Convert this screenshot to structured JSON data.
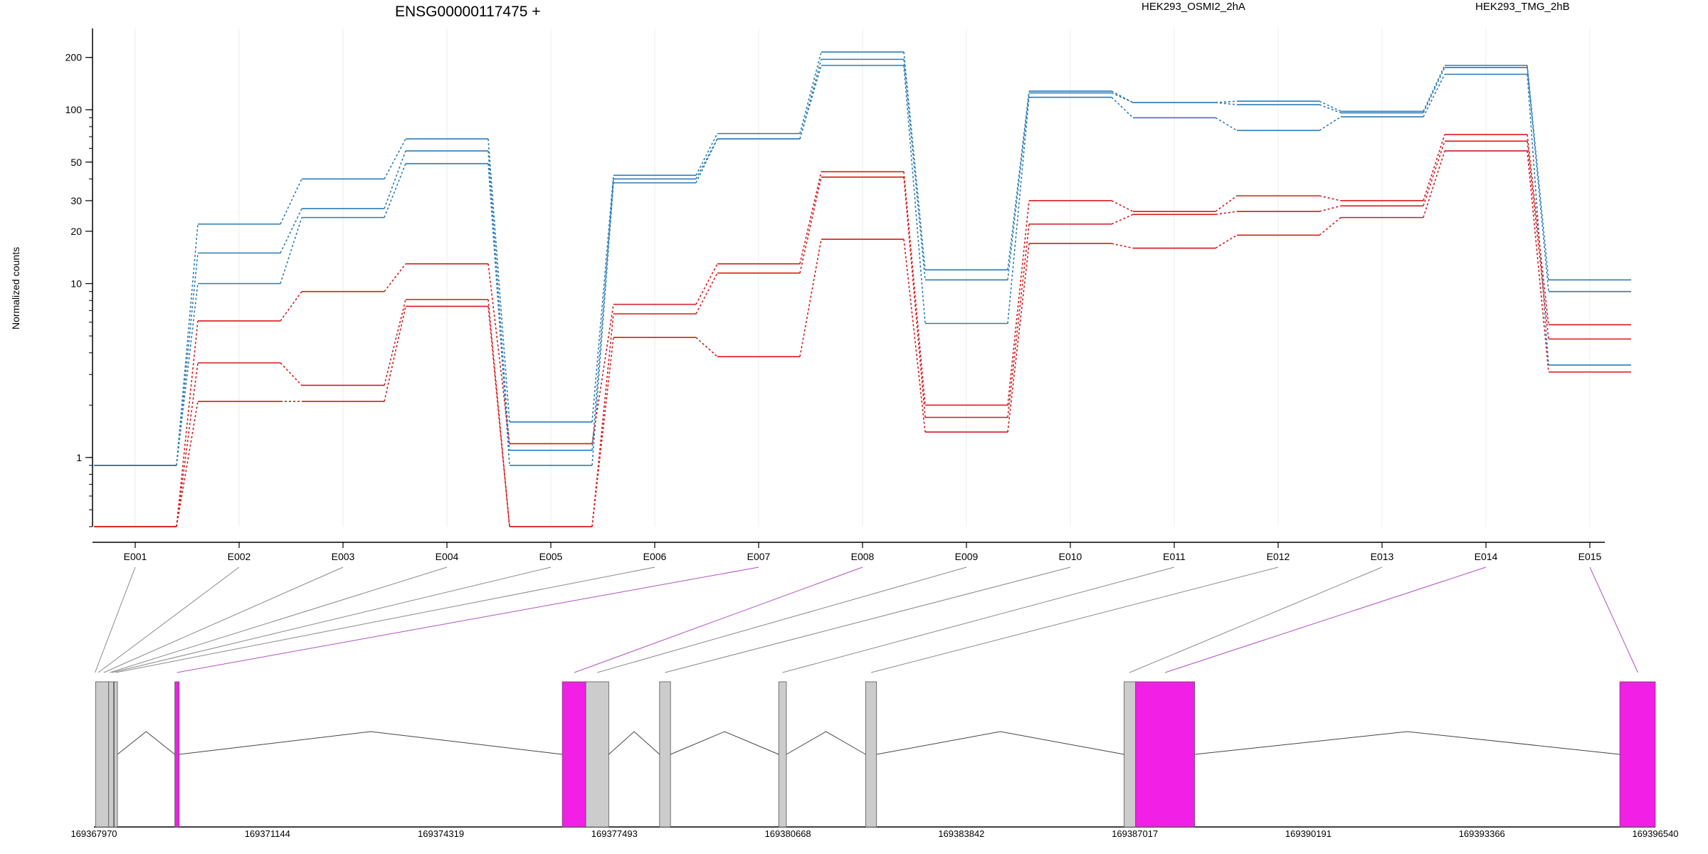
{
  "chart_data": {
    "type": "line",
    "title": "ENSG00000117475 +",
    "ylabel": "Normalized counts",
    "yscale": "log",
    "ylim": [
      0.4,
      280
    ],
    "yticks": [
      {
        "value": 1,
        "label": "1"
      },
      {
        "value": 10,
        "label": "10"
      },
      {
        "value": 20,
        "label": "20"
      },
      {
        "value": 30,
        "label": "30"
      },
      {
        "value": 50,
        "label": "50"
      },
      {
        "value": 100,
        "label": "100"
      },
      {
        "value": 200,
        "label": "200"
      }
    ],
    "categories": [
      "E001",
      "E002",
      "E003",
      "E004",
      "E005",
      "E006",
      "E007",
      "E008",
      "E009",
      "E010",
      "E011",
      "E012",
      "E013",
      "E014",
      "E015"
    ],
    "legend": [
      {
        "label": "HEK293_OSMI2_2hA",
        "color": "#d7191c"
      },
      {
        "label": "HEK293_TMG_2hB",
        "color": "#2c7bb6"
      }
    ],
    "series": [
      {
        "group": "TMG",
        "color": "#2c7bb6",
        "values": [
          0.9,
          22,
          40,
          68,
          1.6,
          42,
          73,
          215,
          12,
          128,
          110,
          112,
          98,
          180,
          10.5
        ]
      },
      {
        "group": "TMG",
        "color": "#2c7bb6",
        "values": [
          0.9,
          15,
          27,
          58,
          1.1,
          40,
          68,
          195,
          10.5,
          125,
          110,
          107,
          96,
          175,
          9
        ]
      },
      {
        "group": "TMG",
        "color": "#2c7bb6",
        "values": [
          0.9,
          10,
          24,
          49,
          0.9,
          38,
          68,
          180,
          5.9,
          118,
          90,
          76,
          91,
          160,
          3.4
        ]
      },
      {
        "group": "OSMI2",
        "color": "#d7191c",
        "values": [
          0.4,
          6.1,
          9,
          13,
          1.2,
          7.6,
          13,
          44,
          2,
          30,
          26,
          32,
          30,
          72,
          5.8
        ]
      },
      {
        "group": "OSMI2",
        "color": "#d7191c",
        "values": [
          0.4,
          3.5,
          2.6,
          8.1,
          0.4,
          6.7,
          11.5,
          41,
          1.7,
          22,
          25,
          26,
          28,
          66,
          4.8
        ]
      },
      {
        "group": "OSMI2",
        "color": "#d7191c",
        "values": [
          0.4,
          2.1,
          2.1,
          7.4,
          0.4,
          4.9,
          3.8,
          18,
          1.4,
          17,
          16,
          19,
          24,
          58,
          3.1
        ]
      }
    ],
    "grid": "vertical-only",
    "legend_placement": "top"
  },
  "gene_model": {
    "coord_ticks": [
      "169367970",
      "169371144",
      "169374319",
      "169377493",
      "169380668",
      "169383842",
      "169387017",
      "169390191",
      "169393366",
      "169396540"
    ],
    "coord_range": [
      169367970,
      169396540
    ],
    "highlight_color": "#f21fe6",
    "exon_color": "#cccccc",
    "exons": [
      {
        "start": 169368000,
        "end": 169368240,
        "highlight": false
      },
      {
        "start": 169368240,
        "end": 169368330,
        "highlight": false
      },
      {
        "start": 169368340,
        "end": 169368400,
        "highlight": false
      },
      {
        "start": 169369450,
        "end": 169369530,
        "highlight": true
      },
      {
        "start": 169376540,
        "end": 169376970,
        "highlight": true
      },
      {
        "start": 169376970,
        "end": 169377390,
        "highlight": false
      },
      {
        "start": 169378320,
        "end": 169378520,
        "highlight": false
      },
      {
        "start": 169380500,
        "end": 169380640,
        "highlight": false
      },
      {
        "start": 169382090,
        "end": 169382290,
        "highlight": false
      },
      {
        "start": 169386820,
        "end": 169387030,
        "highlight": false
      },
      {
        "start": 169387030,
        "end": 169388110,
        "highlight": true
      },
      {
        "start": 169395890,
        "end": 169396540,
        "highlight": true
      }
    ],
    "bin_links": [
      {
        "exon": "E001",
        "pos": 169367990,
        "highlight": false
      },
      {
        "exon": "E002",
        "pos": 169368050,
        "highlight": false
      },
      {
        "exon": "E003",
        "pos": 169368150,
        "highlight": false
      },
      {
        "exon": "E004",
        "pos": 169368260,
        "highlight": false
      },
      {
        "exon": "E005",
        "pos": 169368300,
        "highlight": false
      },
      {
        "exon": "E006",
        "pos": 169368370,
        "highlight": false
      },
      {
        "exon": "E007",
        "pos": 169369490,
        "highlight": true
      },
      {
        "exon": "E008",
        "pos": 169376760,
        "highlight": true
      },
      {
        "exon": "E009",
        "pos": 169377180,
        "highlight": false
      },
      {
        "exon": "E010",
        "pos": 169378420,
        "highlight": false
      },
      {
        "exon": "E011",
        "pos": 169380570,
        "highlight": false
      },
      {
        "exon": "E012",
        "pos": 169382190,
        "highlight": false
      },
      {
        "exon": "E013",
        "pos": 169386920,
        "highlight": false
      },
      {
        "exon": "E014",
        "pos": 169387570,
        "highlight": true
      },
      {
        "exon": "E015",
        "pos": 169396220,
        "highlight": true
      }
    ]
  }
}
